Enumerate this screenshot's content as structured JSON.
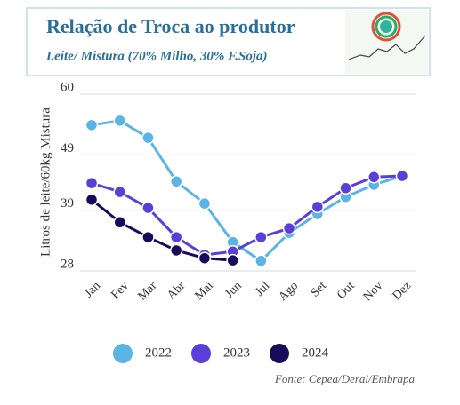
{
  "chart_data": {
    "type": "line",
    "title": "Relação de Troca ao produtor",
    "subtitle": "Leite/ Mistura (70% Milho, 30% F.Soja)",
    "y_label": "Litros de leite/60kg Mistura",
    "source": "Fonte: Cepea/Deral/Embrapa",
    "categories": [
      "Jan",
      "Fev",
      "Mar",
      "Abr",
      "Mai",
      "Jun",
      "Jul",
      "Ago",
      "Set",
      "Out",
      "Nov",
      "Dez"
    ],
    "series": [
      {
        "name": "2022",
        "color": "#5ab4e5",
        "values": [
          54.4,
          55.2,
          52.1,
          44.2,
          40.2,
          33.2,
          29.8,
          34.9,
          38.3,
          41.4,
          43.6,
          45.2
        ]
      },
      {
        "name": "2023",
        "color": "#5b3fd9",
        "values": [
          43.9,
          42.3,
          39.4,
          34.1,
          30.9,
          31.5,
          34.1,
          35.7,
          39.6,
          43.0,
          45.0,
          45.2
        ]
      },
      {
        "name": "2024",
        "color": "#1a0a5c",
        "values": [
          40.9,
          36.8,
          34.1,
          31.7,
          30.3,
          29.9,
          null,
          null,
          null,
          null,
          null,
          null
        ]
      }
    ],
    "ylim": [
      28,
      60
    ],
    "yticks": [
      28,
      39,
      49,
      60
    ],
    "grid": true
  }
}
